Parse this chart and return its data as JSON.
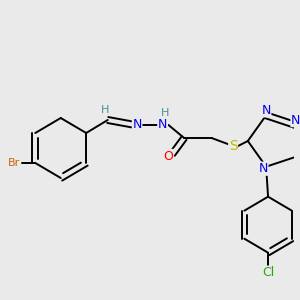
{
  "bg_color": "#eaeaea",
  "fig_size": [
    3.0,
    3.0
  ],
  "dpi": 100,
  "bond_color": "#000000",
  "bond_lw": 1.4,
  "atom_colors": {
    "Br": "#cc6600",
    "O": "#ff0000",
    "S": "#bbbb00",
    "N": "#0000ee",
    "Cl": "#22aa00",
    "H": "#4a9090",
    "C": "#000000"
  },
  "layout": {
    "xlim": [
      0,
      300
    ],
    "ylim": [
      0,
      300
    ]
  }
}
